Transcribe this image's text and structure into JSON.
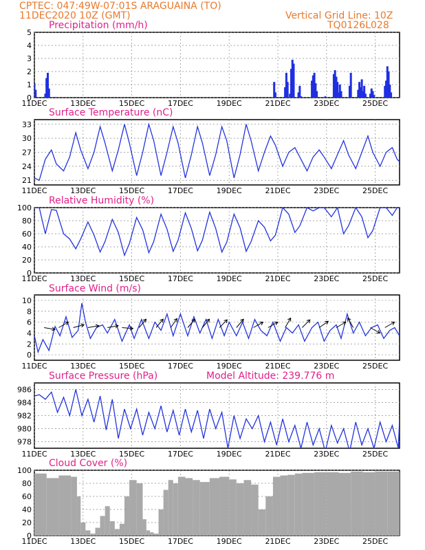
{
  "header": {
    "line1": "CPTEC:   047:49W-07:01S   ARAGUAINA (TO)",
    "line2": "11DEC2020 10Z (GMT)",
    "grid_note": "Vertical Grid Line: 10Z",
    "model_code": "TQ0126L028"
  },
  "colors": {
    "header": "#e8792c",
    "title": "#e0208a",
    "line": "#2233dd",
    "bar": "#1f2fe0",
    "cloud": "#a9a9a9",
    "grid": "#888888"
  },
  "x_ticks": [
    "11DEC",
    "13DEC",
    "15DEC",
    "17DEC",
    "19DEC",
    "21DEC",
    "23DEC",
    "25DEC"
  ],
  "chart_data": [
    {
      "type": "bar",
      "title": "Precipitation (mm/h)",
      "ylim": [
        0,
        5
      ],
      "yticks": [
        0,
        1,
        2,
        3,
        4,
        5
      ],
      "days": [
        0,
        0.05,
        0.45,
        0.5,
        0.55,
        0.6,
        0.8,
        0.85,
        0.9,
        9.85,
        9.9,
        10.3,
        10.35,
        10.4,
        10.5,
        10.55,
        10.6,
        10.65,
        10.85,
        10.9,
        10.95,
        11.4,
        11.45,
        11.5,
        11.55,
        11.6,
        11.95,
        12.3,
        12.35,
        12.4,
        12.45,
        12.5,
        12.55,
        12.6,
        12.95,
        13.0,
        13.3,
        13.35,
        13.4,
        13.45,
        13.5,
        13.55,
        13.6,
        13.8,
        13.85,
        13.9,
        13.95,
        14.4,
        14.45,
        14.5,
        14.55,
        14.6,
        14.65
      ],
      "values": [
        1.1,
        0.6,
        0.3,
        1.5,
        1.9,
        0.7,
        0.05,
        0.04,
        0.03,
        1.2,
        0.4,
        0.8,
        1.9,
        1.2,
        0.3,
        2.2,
        2.9,
        2.6,
        0.4,
        0.9,
        0.1,
        1.3,
        1.7,
        1.9,
        1.1,
        0.5,
        0.1,
        1.8,
        2.1,
        1.6,
        1.2,
        0.4,
        1.0,
        0.5,
        0.9,
        1.9,
        0.6,
        1.2,
        0.8,
        1.4,
        0.5,
        0.9,
        0.3,
        0.3,
        0.7,
        0.5,
        0.2,
        0.9,
        1.3,
        2.4,
        2.0,
        1.0,
        0.4
      ]
    },
    {
      "type": "line",
      "title": "Surface Temperature (nC)",
      "ylim": [
        20,
        34
      ],
      "yticks": [
        21,
        24,
        27,
        30,
        33
      ],
      "days": [
        0,
        0.2,
        0.45,
        0.7,
        0.9,
        1.2,
        1.45,
        1.7,
        1.9,
        2.2,
        2.45,
        2.7,
        2.9,
        3.2,
        3.45,
        3.7,
        3.9,
        4.2,
        4.45,
        4.7,
        4.9,
        5.2,
        5.45,
        5.7,
        5.9,
        6.2,
        6.45,
        6.7,
        6.9,
        7.2,
        7.45,
        7.7,
        7.9,
        8.2,
        8.45,
        8.7,
        8.9,
        9.2,
        9.45,
        9.7,
        9.9,
        10.2,
        10.45,
        10.7,
        10.9,
        11.2,
        11.45,
        11.7,
        11.9,
        12.2,
        12.45,
        12.7,
        12.9,
        13.2,
        13.45,
        13.7,
        13.9,
        14.2,
        14.45,
        14.7,
        14.9,
        15.0
      ],
      "values": [
        21.5,
        21.0,
        25.5,
        27.5,
        24.5,
        23.0,
        26.0,
        31.2,
        27.5,
        23.5,
        27.0,
        32.5,
        29.0,
        23.0,
        27.5,
        33.0,
        29.0,
        22.0,
        27.0,
        33.0,
        29.5,
        22.0,
        27.0,
        32.5,
        29.0,
        21.5,
        26.5,
        32.5,
        29.0,
        22.0,
        26.5,
        32.5,
        29.5,
        21.5,
        26.5,
        33.0,
        29.5,
        23.0,
        27.0,
        30.5,
        28.5,
        24.0,
        27.0,
        28.0,
        26.0,
        23.0,
        26.0,
        27.5,
        26.0,
        23.5,
        26.5,
        29.5,
        26.5,
        23.5,
        27.0,
        30.5,
        27.0,
        24.0,
        27.0,
        28.0,
        25.5,
        25.0
      ]
    },
    {
      "type": "line",
      "title": "Relative Humidity (%)",
      "ylim": [
        0,
        100
      ],
      "yticks": [
        0,
        20,
        40,
        60,
        80,
        100
      ],
      "days": [
        0,
        0.2,
        0.45,
        0.7,
        0.9,
        1.2,
        1.45,
        1.7,
        1.9,
        2.2,
        2.45,
        2.7,
        2.9,
        3.2,
        3.45,
        3.7,
        3.9,
        4.2,
        4.45,
        4.7,
        4.9,
        5.2,
        5.45,
        5.7,
        5.9,
        6.2,
        6.45,
        6.7,
        6.9,
        7.2,
        7.45,
        7.7,
        7.9,
        8.2,
        8.45,
        8.7,
        8.9,
        9.2,
        9.45,
        9.7,
        9.9,
        10.2,
        10.45,
        10.7,
        10.9,
        11.2,
        11.45,
        11.7,
        11.9,
        12.2,
        12.45,
        12.7,
        12.9,
        13.2,
        13.45,
        13.7,
        13.9,
        14.2,
        14.45,
        14.7,
        14.9,
        15.0
      ],
      "values": [
        100,
        100,
        60,
        97,
        96,
        60,
        52,
        37,
        52,
        78,
        58,
        32,
        48,
        82,
        62,
        27,
        45,
        85,
        66,
        31,
        48,
        90,
        67,
        33,
        50,
        92,
        68,
        34,
        50,
        93,
        68,
        32,
        47,
        90,
        69,
        33,
        48,
        80,
        70,
        49,
        58,
        100,
        90,
        62,
        72,
        100,
        95,
        100,
        100,
        86,
        100,
        60,
        72,
        100,
        86,
        54,
        65,
        100,
        100,
        88,
        100,
        100
      ]
    },
    {
      "type": "line",
      "title": "Surface Wind (m/s)",
      "ylim": [
        -1,
        11
      ],
      "yticks": [
        0,
        2,
        4,
        6,
        8,
        10
      ],
      "days": [
        0,
        0.15,
        0.35,
        0.6,
        0.85,
        1.05,
        1.3,
        1.55,
        1.8,
        1.95,
        2.1,
        2.3,
        2.55,
        2.8,
        3.0,
        3.3,
        3.6,
        3.9,
        4.1,
        4.4,
        4.7,
        4.95,
        5.2,
        5.45,
        5.7,
        6.0,
        6.3,
        6.55,
        6.8,
        7.05,
        7.3,
        7.55,
        7.8,
        8.0,
        8.3,
        8.55,
        8.8,
        9.05,
        9.3,
        9.55,
        9.8,
        10.1,
        10.35,
        10.6,
        10.85,
        11.1,
        11.4,
        11.65,
        11.9,
        12.15,
        12.4,
        12.6,
        12.85,
        13.1,
        13.35,
        13.6,
        13.85,
        14.1,
        14.35,
        14.6,
        14.8,
        15.0
      ],
      "values": [
        3.5,
        0.5,
        2.8,
        0.8,
        5.2,
        3.5,
        7.0,
        3.2,
        4.5,
        9.5,
        6.0,
        3.0,
        5.0,
        5.5,
        4.0,
        6.5,
        2.5,
        5.5,
        3.0,
        6.5,
        3.0,
        6.0,
        4.5,
        7.5,
        3.5,
        7.5,
        3.5,
        7.0,
        4.0,
        6.5,
        3.0,
        6.5,
        3.5,
        6.0,
        3.5,
        6.0,
        3.0,
        6.5,
        4.5,
        3.5,
        6.0,
        2.5,
        5.0,
        4.0,
        5.5,
        2.5,
        5.0,
        6.0,
        2.5,
        4.5,
        5.5,
        3.0,
        7.5,
        4.0,
        6.0,
        3.5,
        5.0,
        5.5,
        3.0,
        4.5,
        5.0,
        3.5
      ],
      "vector_days": [
        0.4,
        1.0,
        1.6,
        2.2,
        3.0,
        3.6,
        4.3,
        5.0,
        5.6,
        6.3,
        6.9,
        7.6,
        8.3,
        9.0,
        9.6,
        10.3,
        11.0,
        11.7,
        12.4,
        13.1,
        13.8,
        14.4
      ],
      "vector_dirs": [
        100,
        60,
        75,
        80,
        80,
        95,
        40,
        40,
        35,
        40,
        40,
        45,
        40,
        60,
        60,
        30,
        45,
        55,
        60,
        330,
        120,
        60
      ]
    },
    {
      "type": "line",
      "title": "Surface Pressure (hPa)",
      "subtitle": "Model Altitude: 239.776 m",
      "ylim": [
        977,
        987
      ],
      "yticks": [
        978,
        980,
        982,
        984,
        986
      ],
      "days": [
        0,
        0.2,
        0.45,
        0.7,
        0.95,
        1.2,
        1.45,
        1.7,
        1.95,
        2.2,
        2.45,
        2.7,
        2.95,
        3.2,
        3.45,
        3.7,
        3.95,
        4.2,
        4.45,
        4.7,
        4.95,
        5.2,
        5.45,
        5.7,
        5.95,
        6.2,
        6.45,
        6.7,
        6.95,
        7.2,
        7.45,
        7.7,
        7.95,
        8.2,
        8.45,
        8.7,
        8.95,
        9.2,
        9.45,
        9.7,
        9.95,
        10.2,
        10.45,
        10.7,
        10.95,
        11.2,
        11.45,
        11.7,
        11.95,
        12.2,
        12.45,
        12.7,
        12.95,
        13.2,
        13.45,
        13.7,
        13.95,
        14.2,
        14.45,
        14.7,
        14.95,
        15.0
      ],
      "values": [
        985.0,
        985.2,
        984.5,
        985.6,
        982.5,
        984.8,
        982.0,
        986.0,
        982.0,
        984.5,
        981.0,
        985.0,
        979.8,
        984.5,
        978.5,
        983.0,
        980.0,
        983.0,
        979.0,
        982.5,
        980.0,
        983.5,
        979.5,
        982.8,
        979.0,
        983.0,
        979.5,
        982.8,
        978.5,
        983.0,
        980.0,
        982.5,
        977.0,
        982.0,
        978.5,
        981.5,
        980.0,
        982.0,
        978.0,
        981.0,
        977.5,
        981.5,
        978.0,
        980.5,
        977.0,
        981.0,
        977.5,
        980.0,
        976.5,
        980.5,
        977.8,
        980.0,
        976.5,
        981.0,
        977.5,
        980.0,
        977.0,
        981.0,
        978.0,
        980.5,
        977.0,
        981.5
      ]
    },
    {
      "type": "bar",
      "title": "Cloud Cover (%)",
      "ylim": [
        0,
        100
      ],
      "yticks": [
        0,
        20,
        40,
        60,
        80,
        100
      ],
      "days": [
        0,
        0.5,
        1.0,
        1.5,
        1.75,
        1.9,
        2.1,
        2.3,
        2.5,
        2.7,
        2.9,
        3.1,
        3.3,
        3.5,
        3.7,
        3.9,
        4.2,
        4.45,
        4.6,
        4.75,
        4.9,
        5.1,
        5.3,
        5.5,
        5.7,
        5.9,
        6.2,
        6.5,
        6.8,
        7.2,
        7.6,
        8.0,
        8.3,
        8.6,
        8.9,
        9.2,
        9.5,
        9.8,
        10.1,
        10.4,
        10.7,
        11.0,
        11.5,
        12.0,
        12.5,
        13.0,
        13.5,
        14.0,
        14.5,
        15.0
      ],
      "values": [
        95,
        88,
        92,
        90,
        60,
        20,
        8,
        3,
        12,
        30,
        45,
        22,
        10,
        18,
        60,
        85,
        80,
        25,
        8,
        5,
        3,
        40,
        70,
        85,
        80,
        90,
        88,
        85,
        82,
        88,
        90,
        86,
        80,
        85,
        78,
        40,
        60,
        90,
        92,
        93,
        95,
        96,
        97,
        97,
        96,
        98,
        97,
        98,
        98,
        98
      ]
    }
  ]
}
